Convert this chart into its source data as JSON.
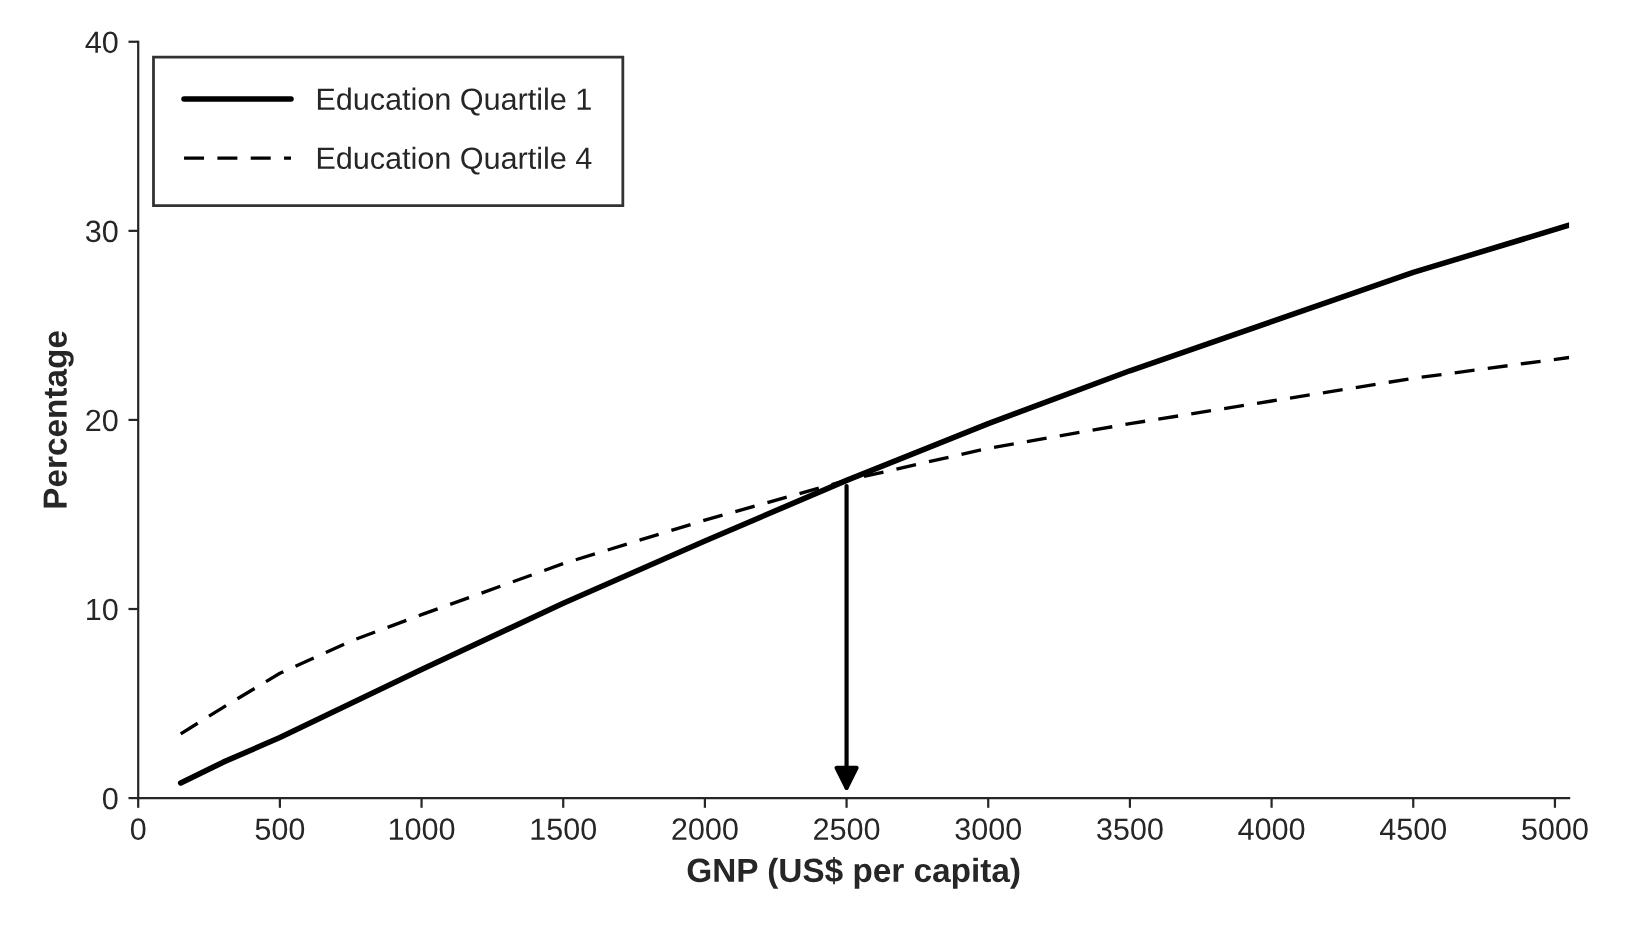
{
  "chart_data": {
    "type": "line",
    "xlabel": "GNP (US$ per capita)",
    "ylabel": "Percentage",
    "xlim": [
      0,
      5050
    ],
    "xticks": [
      0,
      500,
      1000,
      1500,
      2000,
      2500,
      3000,
      3500,
      4000,
      4500,
      5000
    ],
    "ylim": [
      0,
      40
    ],
    "yticks": [
      0,
      10,
      20,
      30,
      40
    ],
    "x": [
      150,
      300,
      500,
      750,
      1000,
      1500,
      2000,
      2500,
      3000,
      3500,
      4000,
      4500,
      5050
    ],
    "series": [
      {
        "name": "Education Quartile 1",
        "color": "#000000",
        "line_style": "solid",
        "values": [
          0.8,
          1.9,
          3.2,
          5.0,
          6.8,
          10.3,
          13.6,
          16.8,
          19.8,
          22.6,
          25.2,
          27.8,
          30.3
        ]
      },
      {
        "name": "Education Quartile 4",
        "color": "#000000",
        "line_style": "dashed",
        "values": [
          3.4,
          4.8,
          6.6,
          8.3,
          9.7,
          12.4,
          14.7,
          16.8,
          18.5,
          19.8,
          21.0,
          22.2,
          23.3
        ]
      }
    ],
    "legend": "top left",
    "grid": false,
    "marker": "none"
  }
}
